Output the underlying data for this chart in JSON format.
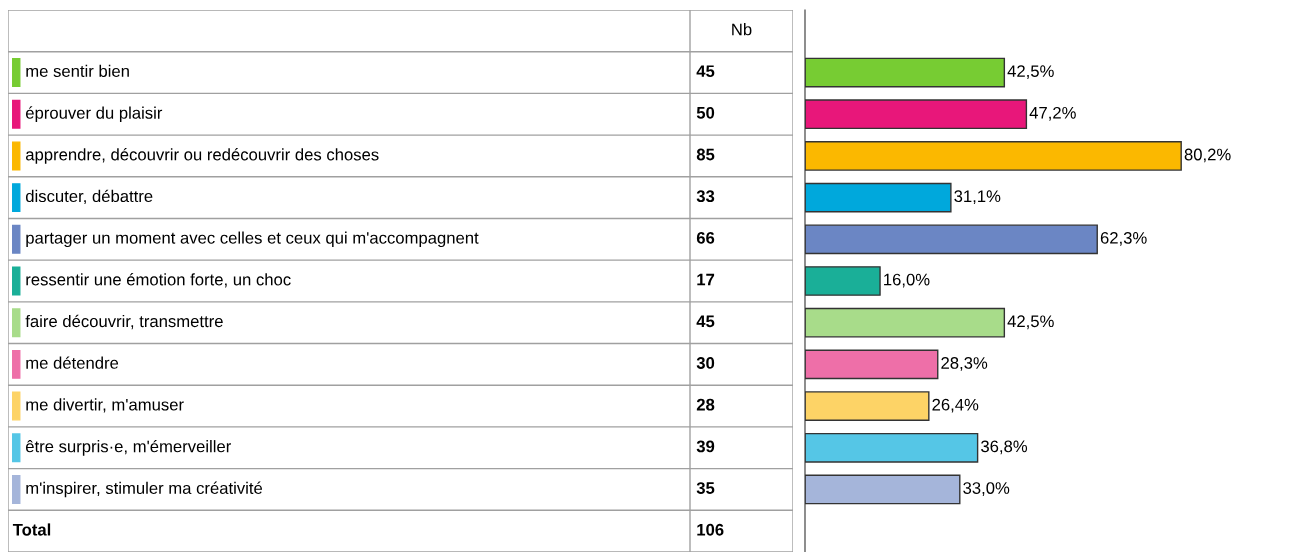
{
  "chart_data": {
    "type": "bar",
    "orientation": "horizontal",
    "categories": [
      "me sentir bien",
      "éprouver du plaisir",
      "apprendre, découvrir ou redécouvrir des choses",
      "discuter, débattre",
      "partager un moment avec celles et ceux qui m'accompagnent",
      "ressentir une émotion forte, un choc",
      "faire découvrir, transmettre",
      "me détendre",
      "me divertir, m'amuser",
      "être surpris·e, m'émerveiller",
      "m'inspirer, stimuler ma créativité"
    ],
    "values": [
      42.5,
      47.2,
      80.2,
      31.1,
      62.3,
      16.0,
      42.5,
      28.3,
      26.4,
      36.8,
      33.0
    ],
    "value_labels": [
      "42,5%",
      "47,2%",
      "80,2%",
      "31,1%",
      "62,3%",
      "16,0%",
      "42,5%",
      "28,3%",
      "26,4%",
      "36,8%",
      "33,0%"
    ],
    "colors": [
      "#77cc33",
      "#e8177a",
      "#fbb800",
      "#00a8dc",
      "#6b86c4",
      "#1aaf98",
      "#a8dc8a",
      "#ee6fa8",
      "#fdd366",
      "#55c6e6",
      "#a5b5da"
    ],
    "legend": false,
    "annotations": [
      "Nb",
      "45",
      "50",
      "85",
      "33",
      "66",
      "17",
      "45",
      "30",
      "28",
      "39",
      "35",
      "Total",
      "106"
    ]
  }
}
